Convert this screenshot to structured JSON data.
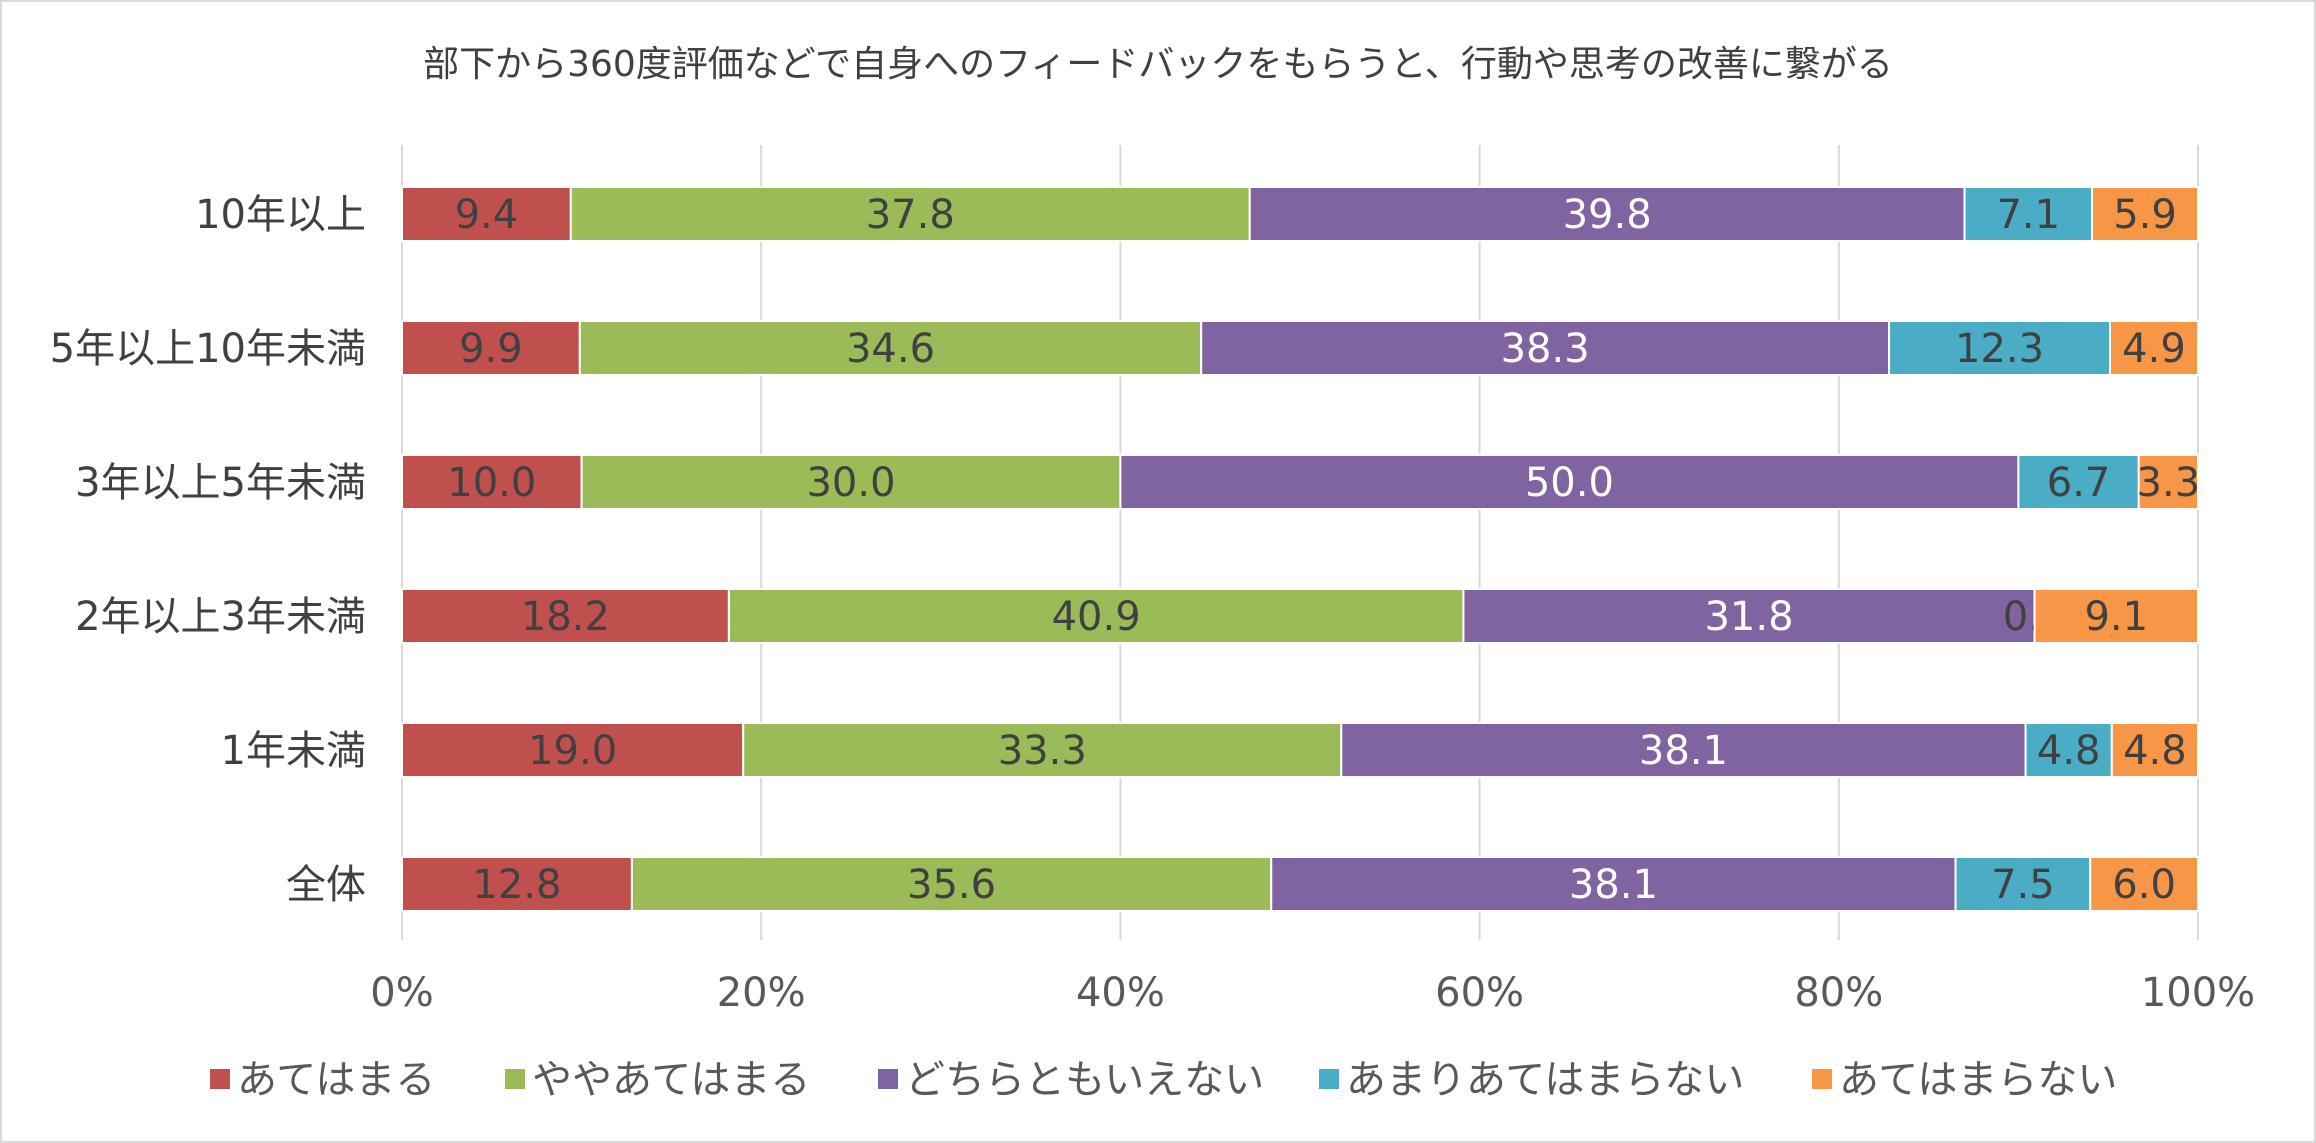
{
  "chart_data": {
    "type": "bar",
    "orientation": "horizontal",
    "stacked": "percent",
    "title": "部下から360度評価などで自身へのフィードバックをもらうと、行動や思考の改善に繋がる",
    "categories": [
      "10年以上",
      "5年以上10年未満",
      "3年以上5年未満",
      "2年以上3年未満",
      "1年未満",
      "全体"
    ],
    "series": [
      {
        "name": "あてはまる",
        "color": "#C0504D",
        "labelColor": "#404040",
        "values": [
          9.4,
          9.9,
          10.0,
          18.2,
          19.0,
          12.8
        ]
      },
      {
        "name": "ややあてはまる",
        "color": "#9BBB59",
        "labelColor": "#404040",
        "values": [
          37.8,
          34.6,
          30.0,
          40.9,
          33.3,
          35.6
        ]
      },
      {
        "name": "どちらともいえない",
        "color": "#8064A2",
        "labelColor": "#ffffff",
        "values": [
          39.8,
          38.3,
          50.0,
          31.8,
          38.1,
          38.1
        ]
      },
      {
        "name": "あまりあてはまらない",
        "color": "#4BACC6",
        "labelColor": "#404040",
        "values": [
          7.1,
          12.3,
          6.7,
          0.0,
          4.8,
          7.5
        ]
      },
      {
        "name": "あてはまらない",
        "color": "#F79646",
        "labelColor": "#404040",
        "values": [
          5.9,
          4.9,
          3.3,
          9.1,
          4.8,
          6.0
        ]
      }
    ],
    "xticks": [
      "0%",
      "20%",
      "40%",
      "60%",
      "80%",
      "100%"
    ],
    "xlim": [
      0,
      100
    ],
    "grid": true,
    "legend": "bottom"
  }
}
